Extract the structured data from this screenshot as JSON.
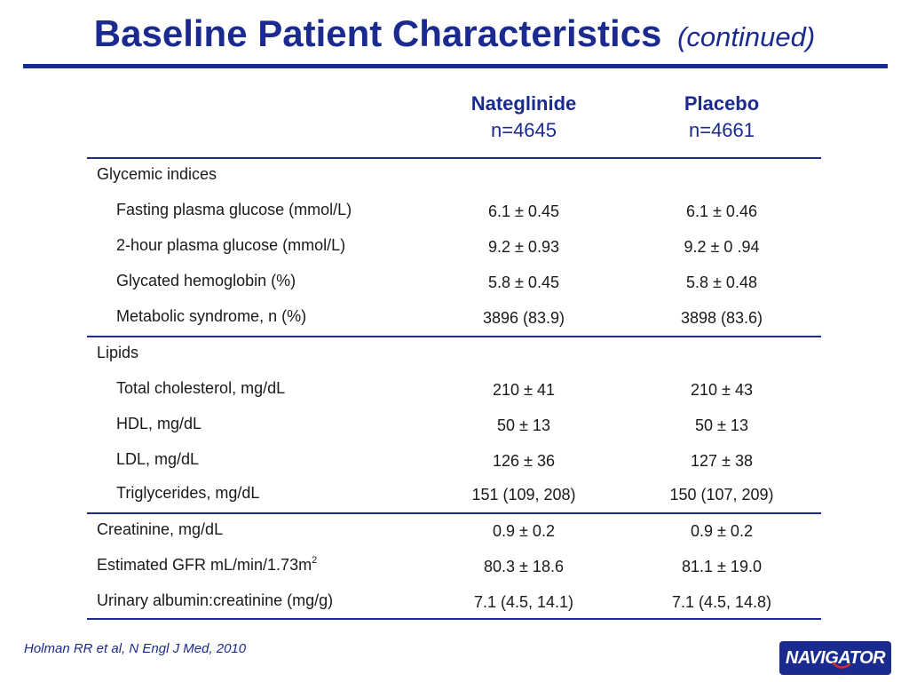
{
  "title": {
    "main": "Baseline Patient Characteristics",
    "sub": "(continued)"
  },
  "columns": [
    {
      "name": "Nateglinide",
      "n": "n=4645"
    },
    {
      "name": "Placebo",
      "n": "n=4661"
    }
  ],
  "rows": [
    {
      "label": "Glycemic indices",
      "a": "",
      "b": ""
    },
    {
      "label": "Fasting plasma glucose (mmol/L)",
      "a": "6.1 ± 0.45",
      "b": "6.1 ± 0.46"
    },
    {
      "label": "2-hour plasma glucose (mmol/L)",
      "a": "9.2 ± 0.93",
      "b": "9.2 ± 0 .94"
    },
    {
      "label": "Glycated hemoglobin (%)",
      "a": "5.8 ± 0.45",
      "b": "5.8 ± 0.48"
    },
    {
      "label": "Metabolic syndrome, n (%)",
      "a": "3896 (83.9)",
      "b": "3898 (83.6)"
    },
    {
      "label": "Lipids",
      "a": "",
      "b": ""
    },
    {
      "label": "Total cholesterol, mg/dL",
      "a": "210 ± 41",
      "b": "210 ± 43"
    },
    {
      "label": "HDL, mg/dL",
      "a": "50 ± 13",
      "b": "50 ± 13"
    },
    {
      "label": "LDL, mg/dL",
      "a": "126 ± 36",
      "b": "127 ± 38"
    },
    {
      "label": "Triglycerides, mg/dL",
      "a": "151 (109, 208)",
      "b": "150 (107, 209)"
    },
    {
      "label": "Creatinine, mg/dL",
      "a": "0.9 ± 0.2",
      "b": "0.9 ± 0.2"
    },
    {
      "label": "Estimated GFR mL/min/1.73m",
      "sup": "2",
      "a": "80.3 ± 18.6",
      "b": "81.1 ± 19.0"
    },
    {
      "label": "Urinary albumin:creatinine (mg/g)",
      "a": "7.1 (4.5, 14.1)",
      "b": "7.1 (4.5, 14.8)"
    }
  ],
  "citation": "Holman RR et al, N Engl J Med, 2010",
  "logo": {
    "text": "NAVIGATOR"
  },
  "colors": {
    "accent": "#1b2a8f",
    "text": "#1a1a1a"
  }
}
